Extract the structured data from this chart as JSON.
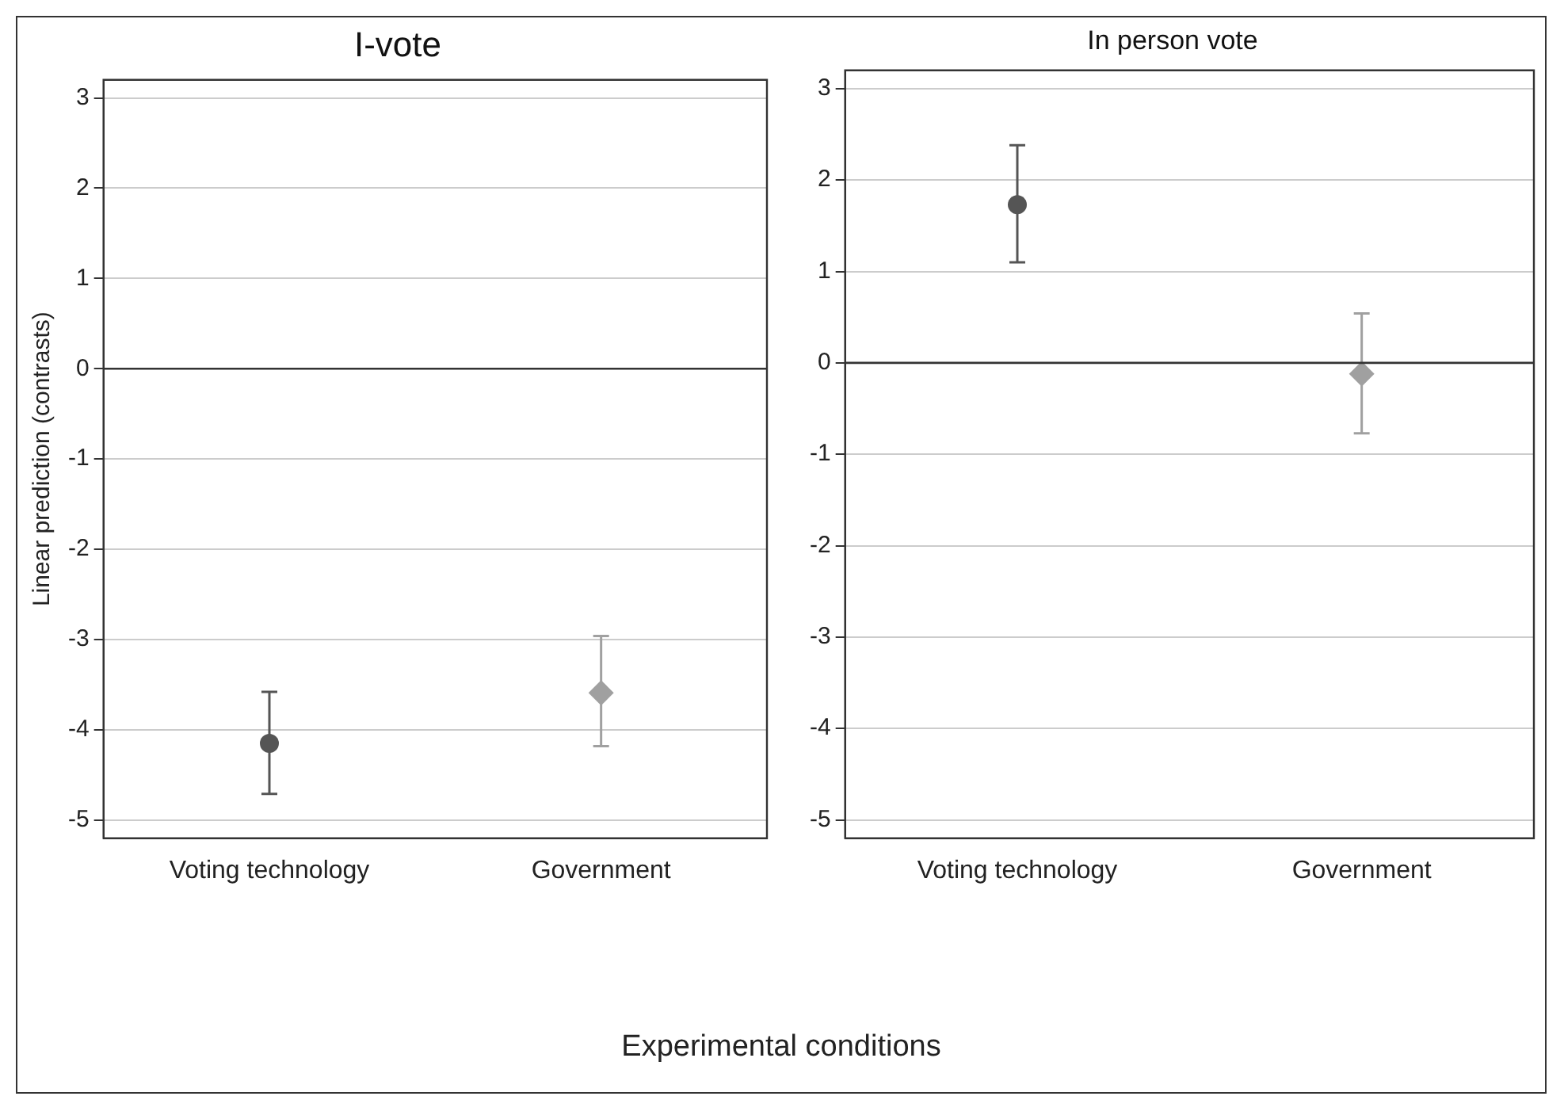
{
  "chart_data": [
    {
      "type": "scatter",
      "title": "I-vote",
      "ylabel": "Linear prediction (contrasts)",
      "xlabel": "Experimental conditions",
      "categories": [
        "Voting technology",
        "Government"
      ],
      "series": [
        {
          "color": "#555555",
          "marker": "circle",
          "values": [
            -4.15,
            null
          ],
          "errors": [
            [
              -4.71,
              -3.58
            ],
            null
          ]
        },
        {
          "color": "#a0a0a0",
          "marker": "diamond",
          "values": [
            null,
            -3.59
          ],
          "errors": [
            null,
            [
              -4.18,
              -2.96
            ]
          ]
        }
      ],
      "ylim": [
        -5.2,
        3.2
      ],
      "yticks": [
        -5,
        -4,
        -3,
        -2,
        -1,
        0,
        1,
        2,
        3
      ],
      "grid": "y",
      "legend": false,
      "ref_lines": [
        {
          "axis": "y",
          "value": 0,
          "color": "#333333"
        }
      ]
    },
    {
      "type": "scatter",
      "title": "In person vote",
      "categories": [
        "Voting technology",
        "Government"
      ],
      "series": [
        {
          "color": "#555555",
          "marker": "circle",
          "values": [
            1.73,
            null
          ],
          "errors": [
            [
              1.1,
              2.38
            ],
            null
          ]
        },
        {
          "color": "#a0a0a0",
          "marker": "diamond",
          "values": [
            null,
            -0.12
          ],
          "errors": [
            null,
            [
              -0.77,
              0.54
            ]
          ]
        }
      ],
      "ylim": [
        -5.2,
        3.2
      ],
      "yticks": [
        -5,
        -4,
        -3,
        -2,
        -1,
        0,
        1,
        2,
        3
      ],
      "grid": "y",
      "legend": false,
      "ref_lines": [
        {
          "axis": "y",
          "value": 0,
          "color": "#333333"
        }
      ]
    }
  ]
}
